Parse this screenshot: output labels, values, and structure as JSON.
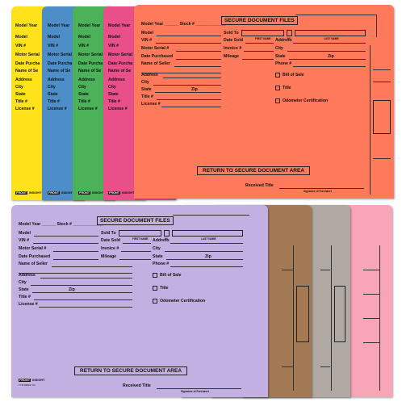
{
  "colors": {
    "yellow": "#ffe21a",
    "blue": "#4d8ec8",
    "green": "#4cb25a",
    "magenta": "#e9508a",
    "orange": "#ff7a5a",
    "lavender": "#c2b0e3",
    "brown": "#a47a54",
    "gray": "#b0a8a2",
    "pink": "#f8a5b7"
  },
  "form": {
    "header": "SECURE DOCUMENT FILES",
    "sold_to": "Sold To",
    "first_name": "FIRST NAME",
    "mi": "MI",
    "last_name": "LAST NAME",
    "model_year": "Model Year ______ Stock # _____________",
    "model": "Model",
    "vin": "VIN #",
    "motor_serial": "Motor Serial #",
    "date_purchased": "Date Purchased",
    "name_of_seller": "Name of Seller",
    "address": "Address",
    "city": "City",
    "state": "State",
    "zip": "Zip",
    "title_no": "Title #",
    "license_no": "License #",
    "date_sold": "Date Sold",
    "invoice_no": "Invoice #",
    "mileage": "Mileage",
    "phone_no": "Phone #",
    "bill_of_sale": "Bill of Sale",
    "title_cb": "Title",
    "odometer": "Odometer Certification",
    "return_label": "RETURN TO SECURE DOCUMENT AREA",
    "received_title": "Received Title",
    "signature": "Signature of Purchaser"
  },
  "side_labels": {
    "model_year": "Model Year",
    "model": "Model",
    "vin": "VIN #",
    "motor_serial": "Motor Serial",
    "date_purch": "Date Purcha",
    "name_of_se": "Name of Se",
    "address": "Address",
    "city": "City",
    "state": "State",
    "title": "Title #",
    "license": "License #"
  },
  "brand": {
    "logo": "FRONT",
    "name": "INSIGHT",
    "code": "TYR-69801-YG"
  }
}
